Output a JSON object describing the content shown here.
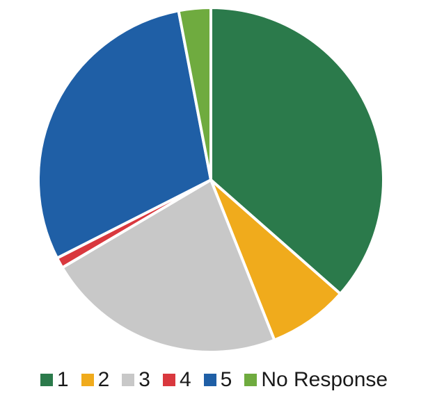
{
  "chart_data": {
    "type": "pie",
    "title": "",
    "slices": [
      {
        "label": "1",
        "value": 36.5,
        "color": "#2b7a4b"
      },
      {
        "label": "2",
        "value": 7.5,
        "color": "#f0ab1c"
      },
      {
        "label": "3",
        "value": 22.5,
        "color": "#c8c8c8"
      },
      {
        "label": "4",
        "value": 1.0,
        "color": "#d9383e"
      },
      {
        "label": "5",
        "value": 29.5,
        "color": "#1f5fa6"
      },
      {
        "label": "No Response",
        "value": 3.0,
        "color": "#6fab3f"
      }
    ],
    "legend_position": "bottom",
    "start_angle_deg": 0,
    "direction": "clockwise"
  }
}
